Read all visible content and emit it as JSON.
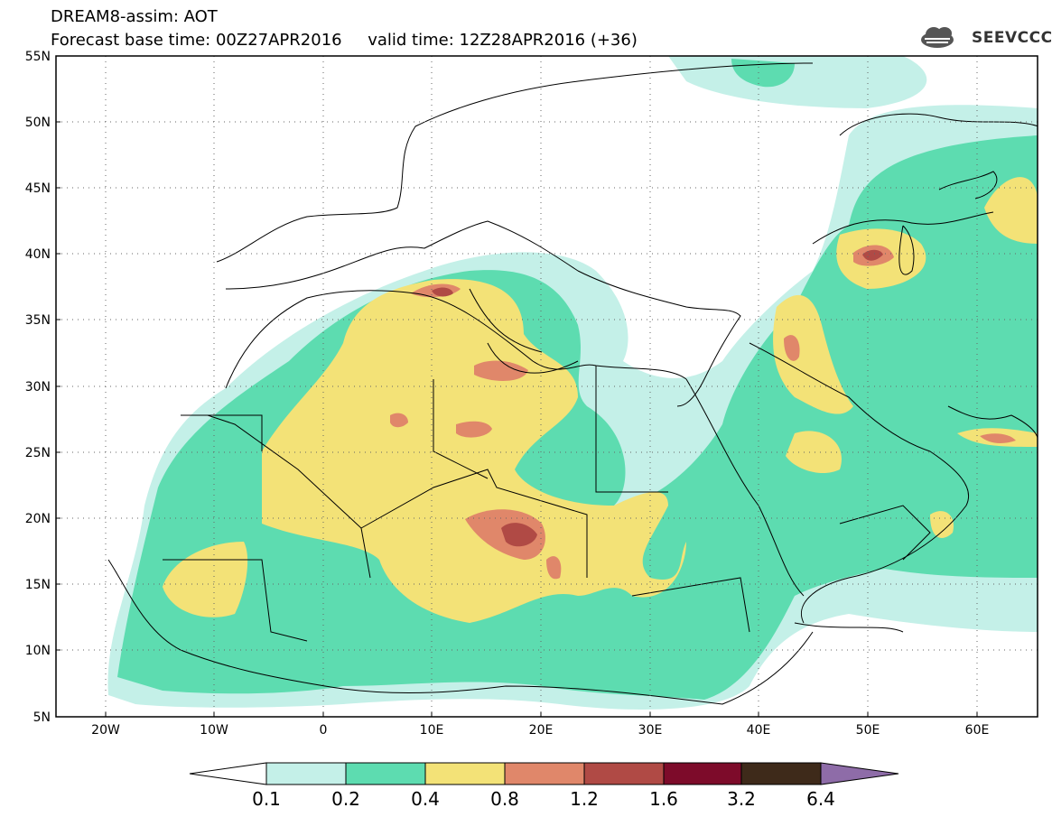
{
  "header": {
    "title_line1": "DREAM8-assim: AOT",
    "title_line2": "Forecast base time: 00Z27APR2016     valid time: 12Z28APR2016 (+36)",
    "logo_text": "SEEVCCC"
  },
  "map": {
    "lat_labels": [
      "55N",
      "50N",
      "45N",
      "40N",
      "35N",
      "30N",
      "25N",
      "20N",
      "15N",
      "10N",
      "5N"
    ],
    "lon_labels": [
      "20W",
      "10W",
      "0",
      "10E",
      "20E",
      "30E",
      "40E",
      "50E",
      "60E"
    ],
    "lat_range": [
      5,
      55
    ],
    "lon_range": [
      -25,
      65
    ],
    "projection": "cylindrical equidistant",
    "gridlines": "dotted"
  },
  "legend": {
    "labels": [
      "0.1",
      "0.2",
      "0.4",
      "0.8",
      "1.2",
      "1.6",
      "3.2",
      "6.4"
    ],
    "colors": [
      "#ffffff",
      "#c4f0e8",
      "#5ddcb0",
      "#f3e277",
      "#e0876a",
      "#b04a45",
      "#7d0b2a",
      "#3e2a1a",
      "#8e6ca8"
    ]
  }
}
